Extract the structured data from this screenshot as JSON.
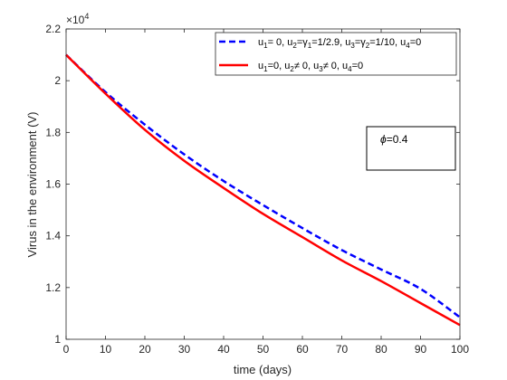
{
  "chart_data": {
    "type": "line",
    "title": "",
    "xlabel": "time (days)",
    "ylabel": "Virus in the environment (V)",
    "xlim": [
      0,
      100
    ],
    "ylim": [
      10000,
      22000
    ],
    "x_ticks": [
      0,
      10,
      20,
      30,
      40,
      50,
      60,
      70,
      80,
      90,
      100
    ],
    "y_ticks": [
      10000,
      12000,
      14000,
      16000,
      18000,
      20000,
      22000
    ],
    "y_tick_labels": [
      "1",
      "1.2",
      "1.4",
      "1.6",
      "1.8",
      "2",
      "2.2"
    ],
    "y_exponent_base": "×10",
    "y_exponent_power": "4",
    "grid": false,
    "legend_position": "top-right",
    "x": [
      0,
      10,
      20,
      30,
      40,
      50,
      60,
      70,
      80,
      90,
      100
    ],
    "series": [
      {
        "legend_parts": [
          {
            "t": "u"
          },
          {
            "t": "1",
            "sub": true
          },
          {
            "t": "= 0, u"
          },
          {
            "t": "2",
            "sub": true
          },
          {
            "t": "=γ"
          },
          {
            "t": "1",
            "sub": true
          },
          {
            "t": "=1/2.9, u"
          },
          {
            "t": "3",
            "sub": true
          },
          {
            "t": "=γ"
          },
          {
            "t": "2",
            "sub": true
          },
          {
            "t": "=1/10, u"
          },
          {
            "t": "4",
            "sub": true
          },
          {
            "t": "=0"
          }
        ],
        "color": "#0000ff",
        "style": "dashed",
        "values": [
          21000,
          19560,
          18300,
          17150,
          16120,
          15190,
          14300,
          13450,
          12700,
          11950,
          10850
        ]
      },
      {
        "legend_parts": [
          {
            "t": "u"
          },
          {
            "t": "1",
            "sub": true
          },
          {
            "t": "=0, u"
          },
          {
            "t": "2",
            "sub": true
          },
          {
            "t": "≠ 0, u"
          },
          {
            "t": "3",
            "sub": true
          },
          {
            "t": "≠ 0, u"
          },
          {
            "t": "4",
            "sub": true
          },
          {
            "t": "=0"
          }
        ],
        "color": "#ff0000",
        "style": "solid",
        "values": [
          21000,
          19500,
          18100,
          16900,
          15850,
          14850,
          13950,
          13050,
          12250,
          11400,
          10550
        ]
      }
    ],
    "annotation": {
      "symbol": "ϕ",
      "text": "=0.4"
    }
  }
}
